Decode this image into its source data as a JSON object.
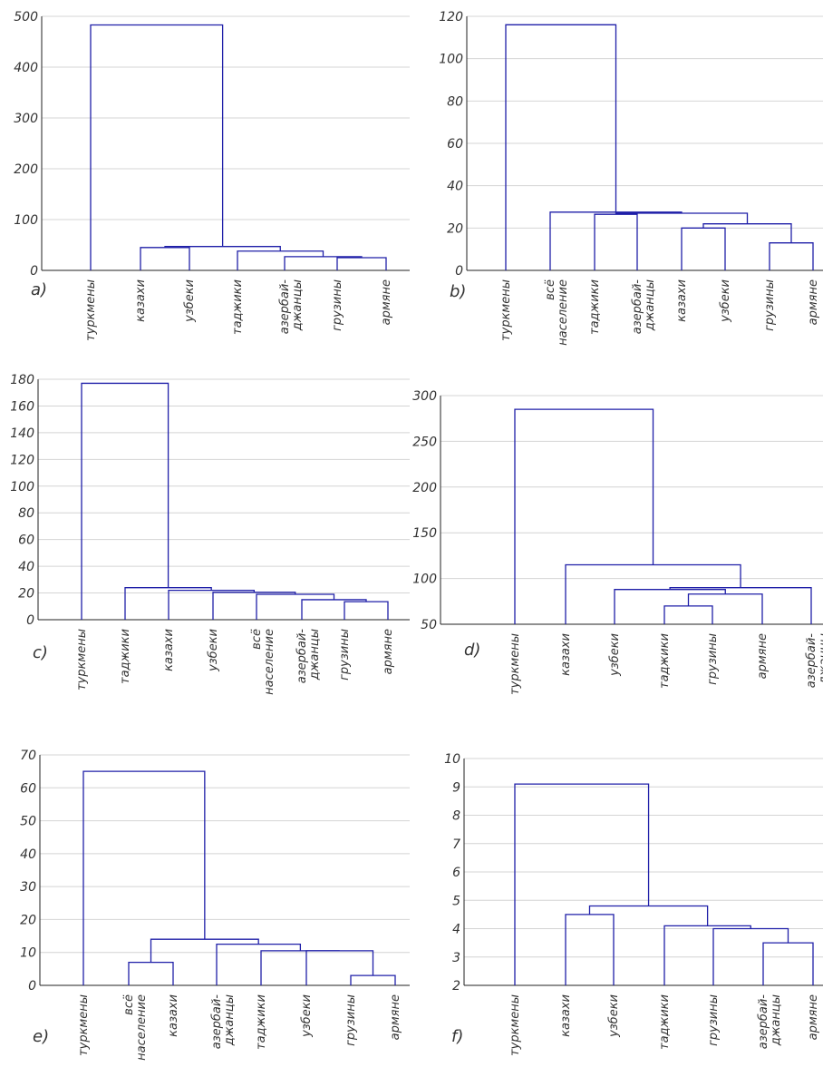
{
  "chart_data": [
    {
      "type": "dendrogram",
      "panel_label": "a)",
      "ylim": [
        0,
        500
      ],
      "yticks": [
        "0",
        "100",
        "200",
        "300",
        "400",
        "500"
      ],
      "leaves": [
        [
          "туркмены"
        ],
        [
          "казахи"
        ],
        [
          "узбеки"
        ],
        [
          "таджики"
        ],
        [
          "азербай-",
          "джанцы"
        ],
        [
          "грузины"
        ],
        [
          "армяне"
        ]
      ],
      "merges": [
        {
          "a": 5,
          "b": 6,
          "height": 25
        },
        {
          "a": 4,
          "b": 7,
          "height": 27
        },
        {
          "a": 3,
          "b": 8,
          "height": 38
        },
        {
          "a": 1,
          "b": 2,
          "height": 45
        },
        {
          "a": 10,
          "b": 9,
          "height": 47
        },
        {
          "a": 0,
          "b": 11,
          "height": 483
        }
      ]
    },
    {
      "type": "dendrogram",
      "panel_label": "b)",
      "ylim": [
        0,
        120
      ],
      "yticks": [
        "0",
        "20",
        "40",
        "60",
        "80",
        "100",
        "120"
      ],
      "leaves": [
        [
          "туркмены"
        ],
        [
          "всё",
          "население"
        ],
        [
          "таджики"
        ],
        [
          "азербай-",
          "джанцы"
        ],
        [
          "казахи"
        ],
        [
          "узбеки"
        ],
        [
          "грузины"
        ],
        [
          "армяне"
        ]
      ],
      "merges": [
        {
          "a": 6,
          "b": 7,
          "height": 13
        },
        {
          "a": 4,
          "b": 5,
          "height": 20
        },
        {
          "a": 9,
          "b": 8,
          "height": 22
        },
        {
          "a": 2,
          "b": 3,
          "height": 26.5
        },
        {
          "a": 11,
          "b": 10,
          "height": 27
        },
        {
          "a": 1,
          "b": 12,
          "height": 27.5
        },
        {
          "a": 0,
          "b": 13,
          "height": 116
        }
      ]
    },
    {
      "type": "dendrogram",
      "panel_label": "c)",
      "ylim": [
        0,
        180
      ],
      "yticks": [
        "0",
        "20",
        "40",
        "60",
        "80",
        "100",
        "120",
        "140",
        "160",
        "180"
      ],
      "leaves": [
        [
          "туркмены"
        ],
        [
          "таджики"
        ],
        [
          "казахи"
        ],
        [
          "узбеки"
        ],
        [
          "всё",
          "население"
        ],
        [
          "азербай-",
          "джанцы"
        ],
        [
          "грузины"
        ],
        [
          "армяне"
        ]
      ],
      "merges": [
        {
          "a": 6,
          "b": 7,
          "height": 13.5
        },
        {
          "a": 5,
          "b": 8,
          "height": 15
        },
        {
          "a": 4,
          "b": 9,
          "height": 19
        },
        {
          "a": 3,
          "b": 10,
          "height": 20.5
        },
        {
          "a": 2,
          "b": 11,
          "height": 22
        },
        {
          "a": 1,
          "b": 12,
          "height": 24
        },
        {
          "a": 0,
          "b": 13,
          "height": 177
        }
      ]
    },
    {
      "type": "dendrogram",
      "panel_label": "d)",
      "ylim": [
        50,
        300
      ],
      "yticks": [
        "50",
        "100",
        "150",
        "200",
        "250",
        "300"
      ],
      "leaves": [
        [
          "туркмены"
        ],
        [
          "казахи"
        ],
        [
          "узбеки"
        ],
        [
          "таджики"
        ],
        [
          "грузины"
        ],
        [
          "армяне"
        ],
        [
          "азербай-",
          "джанцы"
        ]
      ],
      "merges": [
        {
          "a": 3,
          "b": 4,
          "height": 70
        },
        {
          "a": 7,
          "b": 5,
          "height": 83
        },
        {
          "a": 2,
          "b": 8,
          "height": 88
        },
        {
          "a": 9,
          "b": 6,
          "height": 90
        },
        {
          "a": 1,
          "b": 10,
          "height": 115
        },
        {
          "a": 0,
          "b": 11,
          "height": 285
        }
      ]
    },
    {
      "type": "dendrogram",
      "panel_label": "e)",
      "ylim": [
        0,
        70
      ],
      "yticks": [
        "0",
        "10",
        "20",
        "30",
        "40",
        "50",
        "60",
        "70"
      ],
      "leaves": [
        [
          "туркмены"
        ],
        [
          "всё",
          "население"
        ],
        [
          "казахи"
        ],
        [
          "азербай-",
          "джанцы"
        ],
        [
          "таджики"
        ],
        [
          "узбеки"
        ],
        [
          "грузины"
        ],
        [
          "армяне"
        ]
      ],
      "merges": [
        {
          "a": 6,
          "b": 7,
          "height": 3
        },
        {
          "a": 1,
          "b": 2,
          "height": 7
        },
        {
          "a": 5,
          "b": 8,
          "height": 10.5
        },
        {
          "a": 4,
          "b": 10,
          "height": 10.5
        },
        {
          "a": 3,
          "b": 11,
          "height": 12.5
        },
        {
          "a": 9,
          "b": 12,
          "height": 14
        },
        {
          "a": 0,
          "b": 13,
          "height": 65
        }
      ]
    },
    {
      "type": "dendrogram",
      "panel_label": "f)",
      "ylim": [
        2,
        10
      ],
      "yticks": [
        "2",
        "3",
        "4",
        "5",
        "6",
        "7",
        "8",
        "9",
        "10"
      ],
      "leaves": [
        [
          "туркмены"
        ],
        [
          "казахи"
        ],
        [
          "узбеки"
        ],
        [
          "таджики"
        ],
        [
          "грузины"
        ],
        [
          "азербай-",
          "джанцы"
        ],
        [
          "армяне"
        ]
      ],
      "merges": [
        {
          "a": 5,
          "b": 6,
          "height": 3.5
        },
        {
          "a": 4,
          "b": 7,
          "height": 4
        },
        {
          "a": 3,
          "b": 8,
          "height": 4.1
        },
        {
          "a": 1,
          "b": 2,
          "height": 4.5
        },
        {
          "a": 10,
          "b": 9,
          "height": 4.8
        },
        {
          "a": 0,
          "b": 11,
          "height": 9.1
        }
      ]
    }
  ]
}
